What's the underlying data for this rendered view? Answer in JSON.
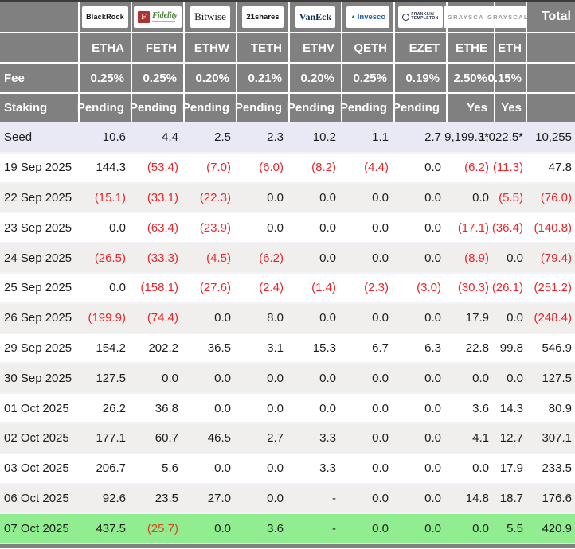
{
  "table": {
    "total_label": "Total",
    "fee_label": "Fee",
    "staking_label": "Staking",
    "issuers": [
      {
        "name": "BlackRock",
        "logo": "blackrock",
        "logo_text": "BlackRock",
        "ticker": "ETHA",
        "fee": "0.25%",
        "staking": "Pending",
        "col": "c-std"
      },
      {
        "name": "Fidelity",
        "logo": "fidelity",
        "logo_badge": "F",
        "logo_text": "Fidelity",
        "ticker": "FETH",
        "fee": "0.25%",
        "staking": "Pending",
        "col": "c-std"
      },
      {
        "name": "Bitwise",
        "logo": "bitwise",
        "logo_text": "Bitwise",
        "ticker": "ETHW",
        "fee": "0.20%",
        "staking": "Pending",
        "col": "c-std"
      },
      {
        "name": "21shares",
        "logo": "shares21",
        "logo_text": "21shares",
        "ticker": "TETH",
        "fee": "0.21%",
        "staking": "Pending",
        "col": "c-std"
      },
      {
        "name": "VanEck",
        "logo": "vaneck",
        "logo_text": "VanEck",
        "ticker": "ETHV",
        "fee": "0.20%",
        "staking": "Pending",
        "col": "c-std"
      },
      {
        "name": "Invesco",
        "logo": "invesco",
        "logo_text": "Invesco",
        "ticker": "QETH",
        "fee": "0.25%",
        "staking": "Pending",
        "col": "c-std"
      },
      {
        "name": "Franklin Templeton",
        "logo": "franklin",
        "logo_line1": "FRANKLIN",
        "logo_line2": "TEMPLETON",
        "ticker": "EZET",
        "fee": "0.19%",
        "staking": "Pending",
        "col": "c-std"
      },
      {
        "name": "Grayscale",
        "logo": "grayscale",
        "logo_text": "GRAYSCALE",
        "ticker": "ETHE",
        "fee": "2.50%",
        "staking": "Yes",
        "col": "c-ethe"
      },
      {
        "name": "Grayscale",
        "logo": "grayscale",
        "logo_text": "GRAYSCALE",
        "ticker": "ETH",
        "fee": "0.15%",
        "staking": "Yes",
        "col": "c-eth"
      }
    ],
    "rows": [
      {
        "label": "Seed",
        "kind": "seed",
        "values": [
          "10.6",
          "4.4",
          "2.5",
          "2.3",
          "10.2",
          "1.1",
          "2.7",
          "9,199.3*",
          "1,022.5*"
        ],
        "total": "10,255"
      },
      {
        "label": "19 Sep 2025",
        "kind": "",
        "values": [
          "144.3",
          "(53.4)",
          "(7.0)",
          "(6.0)",
          "(8.2)",
          "(4.4)",
          "0.0",
          "(6.2)",
          "(11.3)"
        ],
        "total": "47.8"
      },
      {
        "label": "22 Sep 2025",
        "kind": "alt",
        "values": [
          "(15.1)",
          "(33.1)",
          "(22.3)",
          "0.0",
          "0.0",
          "0.0",
          "0.0",
          "0.0",
          "(5.5)"
        ],
        "total": "(76.0)"
      },
      {
        "label": "23 Sep 2025",
        "kind": "",
        "values": [
          "0.0",
          "(63.4)",
          "(23.9)",
          "0.0",
          "0.0",
          "0.0",
          "0.0",
          "(17.1)",
          "(36.4)"
        ],
        "total": "(140.8)"
      },
      {
        "label": "24 Sep 2025",
        "kind": "alt",
        "values": [
          "(26.5)",
          "(33.3)",
          "(4.5)",
          "(6.2)",
          "0.0",
          "0.0",
          "0.0",
          "(8.9)",
          "0.0"
        ],
        "total": "(79.4)"
      },
      {
        "label": "25 Sep 2025",
        "kind": "",
        "values": [
          "0.0",
          "(158.1)",
          "(27.6)",
          "(2.4)",
          "(1.4)",
          "(2.3)",
          "(3.0)",
          "(30.3)",
          "(26.1)"
        ],
        "total": "(251.2)"
      },
      {
        "label": "26 Sep 2025",
        "kind": "alt",
        "values": [
          "(199.9)",
          "(74.4)",
          "0.0",
          "8.0",
          "0.0",
          "0.0",
          "0.0",
          "17.9",
          "0.0"
        ],
        "total": "(248.4)"
      },
      {
        "label": "29 Sep 2025",
        "kind": "",
        "values": [
          "154.2",
          "202.2",
          "36.5",
          "3.1",
          "15.3",
          "6.7",
          "6.3",
          "22.8",
          "99.8"
        ],
        "total": "546.9"
      },
      {
        "label": "30 Sep 2025",
        "kind": "alt",
        "values": [
          "127.5",
          "0.0",
          "0.0",
          "0.0",
          "0.0",
          "0.0",
          "0.0",
          "0.0",
          "0.0"
        ],
        "total": "127.5"
      },
      {
        "label": "01 Oct 2025",
        "kind": "",
        "values": [
          "26.2",
          "36.8",
          "0.0",
          "0.0",
          "0.0",
          "0.0",
          "0.0",
          "3.6",
          "14.3"
        ],
        "total": "80.9"
      },
      {
        "label": "02 Oct 2025",
        "kind": "alt",
        "values": [
          "177.1",
          "60.7",
          "46.5",
          "2.7",
          "3.3",
          "0.0",
          "0.0",
          "4.1",
          "12.7"
        ],
        "total": "307.1"
      },
      {
        "label": "03 Oct 2025",
        "kind": "",
        "values": [
          "206.7",
          "5.6",
          "0.0",
          "0.0",
          "3.3",
          "0.0",
          "0.0",
          "0.0",
          "17.9"
        ],
        "total": "233.5"
      },
      {
        "label": "06 Oct 2025",
        "kind": "alt",
        "values": [
          "92.6",
          "23.5",
          "27.0",
          "0.0",
          "-",
          "0.0",
          "0.0",
          "14.8",
          "18.7"
        ],
        "total": "176.6"
      },
      {
        "label": "07 Oct 2025",
        "kind": "highlight",
        "values": [
          "437.5",
          "(25.7)",
          "0.0",
          "3.6",
          "-",
          "0.0",
          "0.0",
          "0.0",
          "5.5"
        ],
        "total": "420.9"
      }
    ]
  },
  "colors": {
    "header_bg": "#808080",
    "negative_red": "#e8262b",
    "highlight_green": "#90ee90",
    "seed_row_bg": "#e9e9f5",
    "alt_row_bg": "#f0efed",
    "fidelity_red": "#b0322e",
    "fidelity_green": "#4c7d3c",
    "vaneck_navy": "#0a2a5c",
    "invesco_blue": "#1f5fa6",
    "franklin_navy": "#22304f",
    "grayscale_gray": "#9b9b9b"
  }
}
